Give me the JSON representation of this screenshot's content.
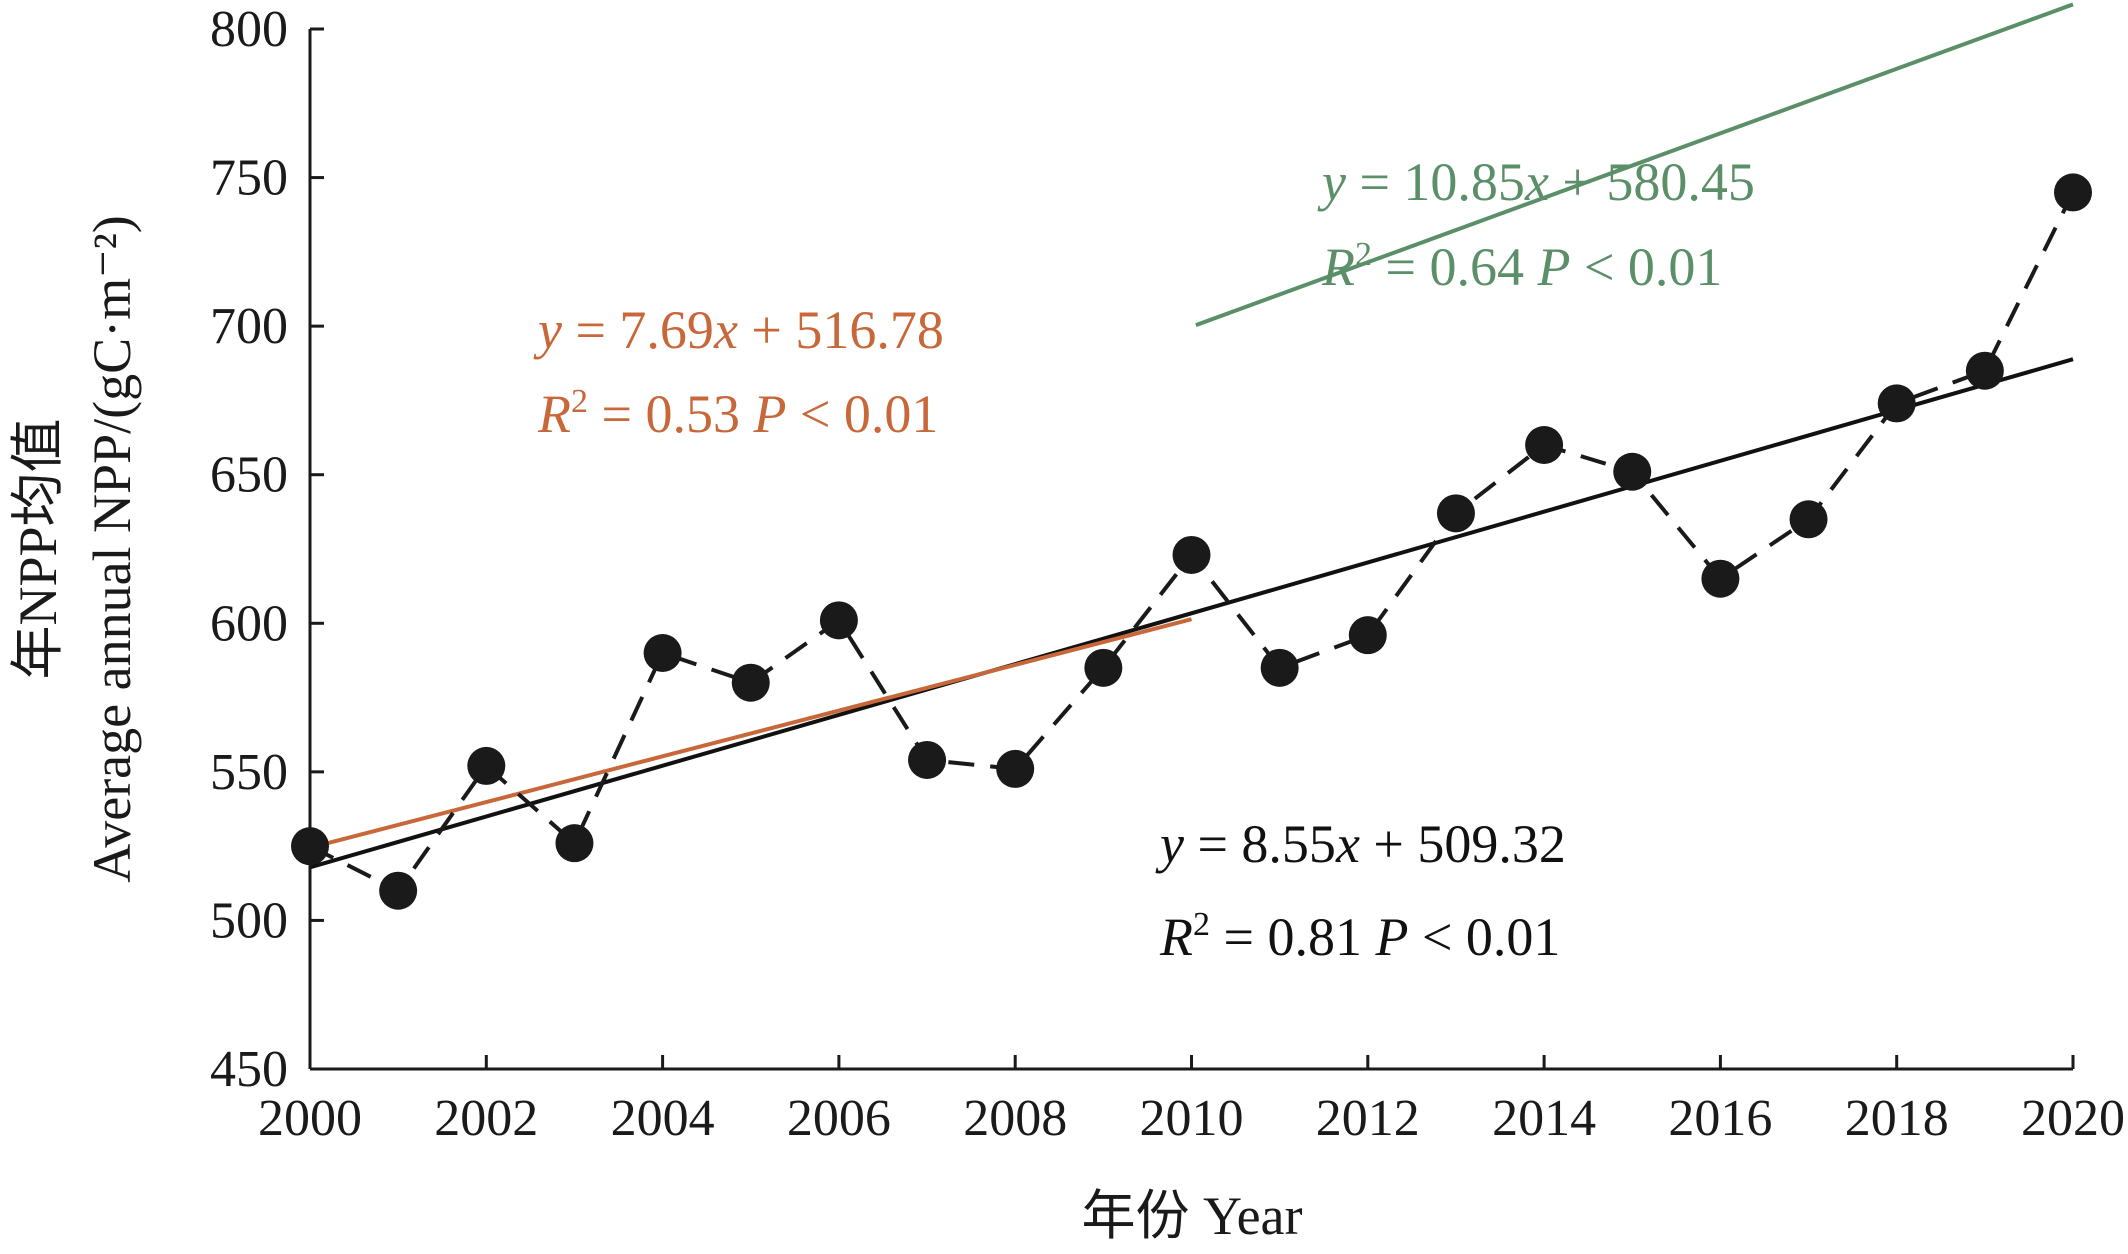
{
  "chart_data": {
    "type": "line",
    "xlabel": "年份  Year",
    "ylabel_cn": "年NPP均值",
    "ylabel_en": "Average annual NPP/(gC·m⁻²)",
    "xlim": [
      2000,
      2020
    ],
    "ylim": [
      450,
      800
    ],
    "x_ticks": [
      2000,
      2002,
      2004,
      2006,
      2008,
      2010,
      2012,
      2014,
      2016,
      2018,
      2020
    ],
    "y_ticks": [
      450,
      500,
      550,
      600,
      650,
      700,
      750,
      800
    ],
    "grid": false,
    "x": [
      2000,
      2001,
      2002,
      2003,
      2004,
      2005,
      2006,
      2007,
      2008,
      2009,
      2010,
      2011,
      2012,
      2013,
      2014,
      2015,
      2016,
      2017,
      2018,
      2019,
      2020
    ],
    "series": [
      {
        "style": "dashed-with-markers",
        "color": "#1a1a1a",
        "values": [
          525,
          510,
          552,
          526,
          590,
          580,
          601,
          554,
          551,
          585,
          623,
          585,
          596,
          637,
          660,
          651,
          615,
          635,
          674,
          685,
          745
        ]
      }
    ],
    "trend_lines": [
      {
        "range": [
          2000,
          2020
        ],
        "color": "#111111",
        "slope": 8.55,
        "intercept": 509.32,
        "eq_line1": [
          "y",
          " = 8.55",
          "x",
          " + 509.32"
        ],
        "eq_line2": [
          "R",
          "2",
          " = 0.81  ",
          "P",
          " < 0.01"
        ]
      },
      {
        "range": [
          2000,
          2010
        ],
        "color": "#c8683a",
        "slope": 7.69,
        "intercept": 516.78,
        "eq_line1": [
          "y",
          " = 7.69",
          "x",
          " + 516.78"
        ],
        "eq_line2": [
          "R",
          "2",
          " = 0.53  ",
          "P",
          " < 0.01"
        ]
      },
      {
        "range": [
          2010,
          2020
        ],
        "color": "#5a8f68",
        "slope": 10.85,
        "intercept": 580.45,
        "eq_line1": [
          "y",
          " = 10.85",
          "x",
          " + 580.45"
        ],
        "eq_line2": [
          "R",
          "2",
          " = 0.64  ",
          "P",
          " < 0.01"
        ]
      }
    ]
  }
}
